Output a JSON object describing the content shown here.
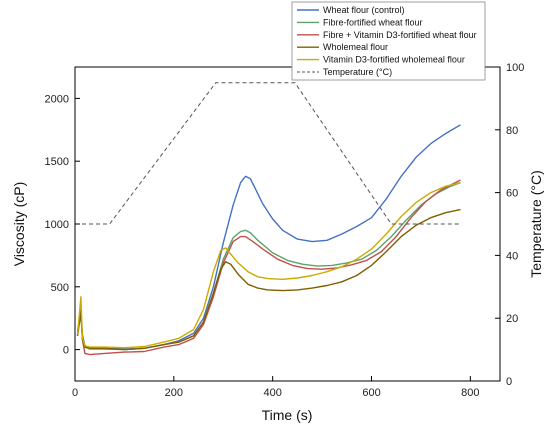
{
  "chart_data": {
    "type": "line",
    "xlabel": "Time (s)",
    "ylabel_left": "Viscosity (cP)",
    "ylabel_right": "Temperature (°C)",
    "xlim": [
      0,
      860
    ],
    "ylim_left": [
      -250,
      2250
    ],
    "ylim_right": [
      0,
      100
    ],
    "xticks": [
      0,
      200,
      400,
      600,
      800
    ],
    "yticks_left": [
      0,
      500,
      1000,
      1500,
      2000
    ],
    "yticks_right": [
      0,
      20,
      40,
      60,
      80,
      100
    ],
    "grid": false,
    "legend_position": "top-right",
    "series": [
      {
        "name": "Wheat flour (control)",
        "color": "#4472c4",
        "axis": "left",
        "dash": false,
        "x": [
          5,
          12,
          15,
          20,
          30,
          60,
          100,
          140,
          180,
          210,
          240,
          260,
          280,
          300,
          320,
          335,
          345,
          355,
          365,
          380,
          400,
          420,
          450,
          480,
          510,
          540,
          570,
          600,
          630,
          660,
          690,
          720,
          750,
          780
        ],
        "y": [
          150,
          280,
          120,
          30,
          10,
          10,
          5,
          10,
          40,
          70,
          130,
          250,
          500,
          850,
          1150,
          1330,
          1380,
          1360,
          1280,
          1160,
          1040,
          950,
          880,
          860,
          870,
          920,
          980,
          1050,
          1200,
          1380,
          1530,
          1640,
          1720,
          1790
        ]
      },
      {
        "name": "Fibre-fortified wheat flour",
        "color": "#5aa469",
        "axis": "left",
        "dash": false,
        "x": [
          5,
          12,
          15,
          20,
          30,
          60,
          100,
          140,
          180,
          210,
          240,
          260,
          280,
          300,
          320,
          335,
          345,
          355,
          370,
          400,
          430,
          460,
          490,
          520,
          550,
          580,
          610,
          640,
          670,
          700,
          730,
          760,
          780
        ],
        "y": [
          120,
          300,
          100,
          20,
          5,
          5,
          0,
          10,
          40,
          60,
          110,
          220,
          450,
          720,
          890,
          940,
          950,
          930,
          870,
          770,
          710,
          680,
          665,
          670,
          690,
          720,
          790,
          900,
          1030,
          1150,
          1240,
          1300,
          1330
        ]
      },
      {
        "name": "Fibre + Vitamin D3-fortified wheat flour",
        "color": "#c0504d",
        "axis": "left",
        "dash": false,
        "x": [
          5,
          12,
          15,
          20,
          30,
          60,
          100,
          140,
          180,
          210,
          240,
          260,
          280,
          300,
          320,
          335,
          345,
          360,
          380,
          410,
          440,
          470,
          500,
          530,
          560,
          590,
          620,
          650,
          680,
          710,
          740,
          780
        ],
        "y": [
          110,
          320,
          80,
          -30,
          -40,
          -30,
          -20,
          -15,
          20,
          40,
          90,
          200,
          420,
          690,
          860,
          900,
          900,
          860,
          800,
          720,
          670,
          645,
          640,
          650,
          675,
          710,
          780,
          900,
          1050,
          1180,
          1270,
          1350
        ]
      },
      {
        "name": "Wholemeal flour",
        "color": "#7f6000",
        "axis": "left",
        "dash": false,
        "x": [
          5,
          12,
          15,
          20,
          30,
          60,
          100,
          140,
          180,
          210,
          240,
          260,
          280,
          295,
          305,
          315,
          330,
          350,
          370,
          390,
          420,
          450,
          480,
          510,
          540,
          570,
          600,
          630,
          660,
          690,
          720,
          750,
          780
        ],
        "y": [
          110,
          300,
          80,
          20,
          10,
          10,
          0,
          10,
          40,
          60,
          110,
          220,
          450,
          640,
          700,
          680,
          600,
          520,
          490,
          475,
          470,
          475,
          490,
          510,
          540,
          590,
          670,
          780,
          900,
          990,
          1050,
          1090,
          1115
        ]
      },
      {
        "name": "Vitamin D3-fortified wholemeal flour",
        "color": "#ccaa00",
        "axis": "left",
        "dash": false,
        "x": [
          5,
          12,
          15,
          20,
          30,
          60,
          100,
          140,
          180,
          210,
          240,
          260,
          280,
          295,
          305,
          315,
          330,
          350,
          370,
          390,
          420,
          450,
          480,
          510,
          540,
          570,
          600,
          630,
          660,
          690,
          720,
          750,
          780
        ],
        "y": [
          120,
          420,
          90,
          30,
          20,
          20,
          15,
          25,
          60,
          90,
          160,
          320,
          620,
          790,
          810,
          760,
          690,
          620,
          580,
          565,
          560,
          570,
          590,
          620,
          660,
          720,
          800,
          920,
          1060,
          1170,
          1250,
          1300,
          1330
        ]
      },
      {
        "name": "Temperature (°C)",
        "color": "#555555",
        "axis": "right",
        "dash": true,
        "x": [
          0,
          70,
          285,
          445,
          640,
          780
        ],
        "y": [
          50,
          50,
          95,
          95,
          50,
          50
        ]
      }
    ]
  }
}
